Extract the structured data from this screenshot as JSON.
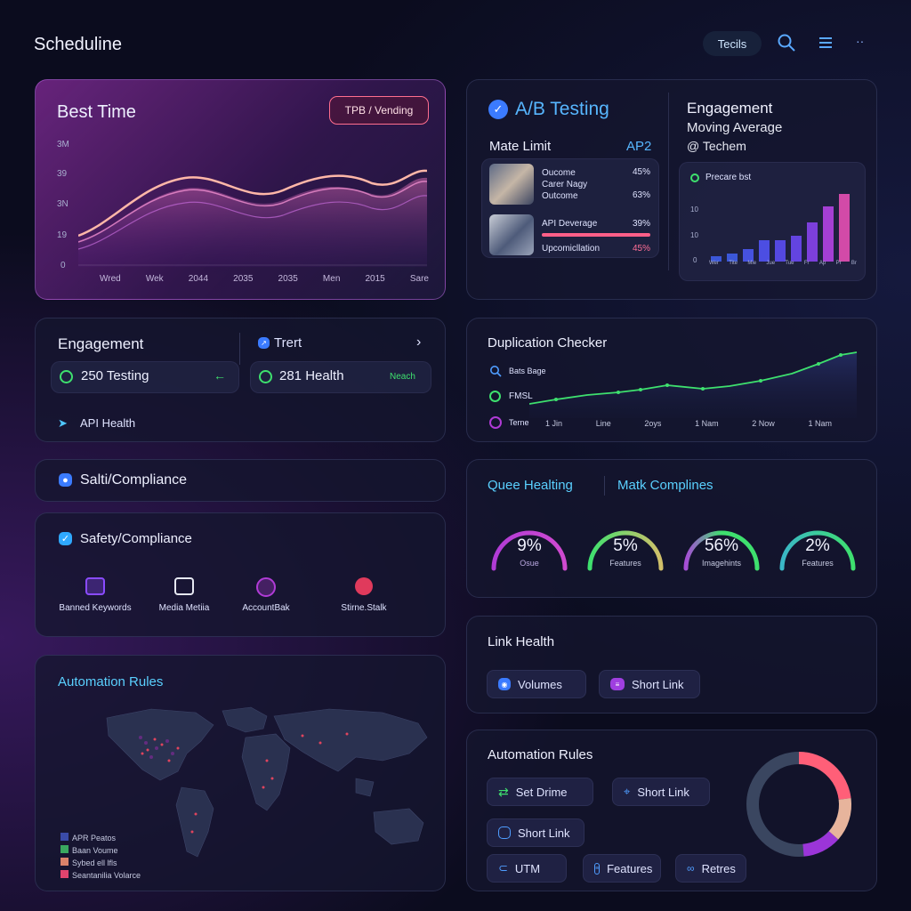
{
  "app": {
    "title": "Scheduline"
  },
  "topbar": {
    "tools_label": "Tecils",
    "overflow_label": "··"
  },
  "best_time": {
    "title": "Best Time",
    "badge": "TPB / Vending",
    "y_ticks": [
      "3M",
      "39",
      "3N",
      "19",
      "0"
    ],
    "x_ticks": [
      "Wred",
      "Wek",
      "2044",
      "2035",
      "2035",
      "Men",
      "2015",
      "Sare"
    ]
  },
  "ab_testing": {
    "title": "A/B Testing",
    "left_label": "Mate Limit",
    "right_label": "AP2",
    "rows": [
      {
        "lines": [
          "Oucome",
          "Carer Nagy",
          "Outcome"
        ],
        "values": [
          "45%",
          "",
          "63%"
        ]
      },
      {
        "lines": [
          "API Deverage",
          "Upcomicllation"
        ],
        "values": [
          "39%",
          "45%"
        ]
      }
    ]
  },
  "engagement_top": {
    "title": "Engagement",
    "subtitle": "Moving Average",
    "sub2": "@ Techem",
    "legend": "Precare bst",
    "y_ticks": [
      "10",
      "10",
      "0"
    ],
    "x_ticks": [
      "Wer",
      "Tite",
      "Mie",
      "Jue",
      "Tue",
      "Fr",
      "Ap",
      "Pr",
      "Br"
    ]
  },
  "engagement_mid": {
    "title": "Engagement",
    "trend_label": "Trert",
    "stat1": "250 Testing",
    "stat2": "281 Health",
    "stat2_badge": "Neach",
    "api_health": "API Health"
  },
  "duplication": {
    "title": "Duplication Checker",
    "legend": [
      "Bats Bage",
      "FMSL",
      "Terne"
    ],
    "x_ticks": [
      "1 Jin",
      "Line",
      "2oys",
      "1 Nam",
      "2 Now",
      "1 Nam"
    ]
  },
  "salti": {
    "title": "Salti/Compliance"
  },
  "safety": {
    "title": "Safety/Compliance",
    "items": [
      "Banned Keywords",
      "Media Metiia",
      "AccountBak",
      "Stirne.Stalk"
    ]
  },
  "gauges": {
    "tab1": "Quee Healting",
    "tab2": "Matk Complines",
    "items": [
      {
        "value": "9%",
        "label": "Osue"
      },
      {
        "value": "5%",
        "label": "Features"
      },
      {
        "value": "56%",
        "label": "Imagehints"
      },
      {
        "value": "2%",
        "label": "Features"
      }
    ]
  },
  "link_health": {
    "title": "Link Health",
    "chip1": "Volumes",
    "chip2": "Short Link"
  },
  "automation_map": {
    "title": "Automation Rules",
    "legend": [
      "APR Peatos",
      "Baan Voume",
      "Sybed ell lfls",
      "Seantanilia Volarce"
    ]
  },
  "automation_right": {
    "title": "Automation Rules",
    "chips": [
      "Set Drime",
      "Short Link",
      "Short Link",
      "UTM",
      "Features",
      "Retres"
    ]
  },
  "colors": {
    "accent_purple": "#b03bd6",
    "accent_green": "#3ee06e",
    "accent_blue": "#3b7bff",
    "accent_pink": "#ff5f88"
  }
}
